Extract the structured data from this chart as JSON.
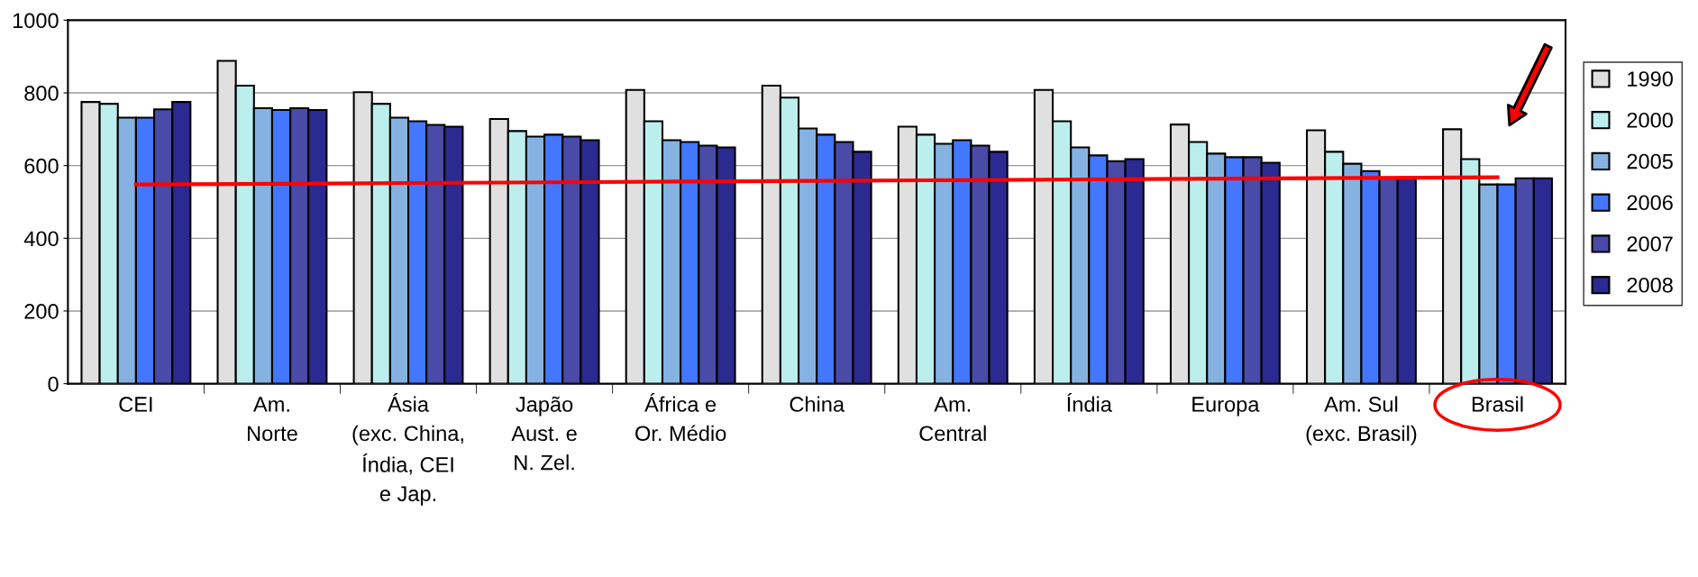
{
  "chart_data": {
    "type": "bar",
    "categories": [
      "CEI",
      "Am.\nNorte",
      "Ásia\n(exc. China,\nÍndia, CEI\ne Jap.",
      "Japão\nAust. e\nN. Zel.",
      "África e\nOr. Médio",
      "China",
      "Am.\nCentral",
      "Índia",
      "Europa",
      "Am. Sul\n(exc. Brasil)",
      "Brasil"
    ],
    "series": [
      {
        "name": "1990",
        "color": "#e0e0e0",
        "values": [
          775,
          888,
          802,
          728,
          808,
          820,
          707,
          808,
          713,
          697,
          700
        ]
      },
      {
        "name": "2000",
        "color": "#bdeeee",
        "values": [
          770,
          820,
          770,
          695,
          722,
          787,
          685,
          722,
          665,
          638,
          618
        ]
      },
      {
        "name": "2005",
        "color": "#85b2e0",
        "values": [
          732,
          758,
          732,
          680,
          670,
          702,
          660,
          650,
          633,
          605,
          548
        ]
      },
      {
        "name": "2006",
        "color": "#4477ff",
        "values": [
          732,
          753,
          722,
          685,
          665,
          685,
          670,
          628,
          623,
          585,
          548
        ]
      },
      {
        "name": "2007",
        "color": "#4a4aa8",
        "values": [
          755,
          758,
          712,
          680,
          655,
          665,
          655,
          612,
          623,
          565,
          565
        ]
      },
      {
        "name": "2008",
        "color": "#2a2a90",
        "values": [
          775,
          753,
          707,
          670,
          650,
          638,
          638,
          618,
          608,
          565,
          565
        ]
      },
      {
        "type": "line",
        "color": "#ff0000",
        "values": [
          548,
          550,
          552,
          554,
          556,
          558,
          560,
          562,
          564,
          566,
          568
        ]
      }
    ],
    "ylim": [
      0,
      1000
    ],
    "yticks": [
      0,
      200,
      400,
      600,
      800,
      1000
    ],
    "grid": "y",
    "legend": "right"
  }
}
